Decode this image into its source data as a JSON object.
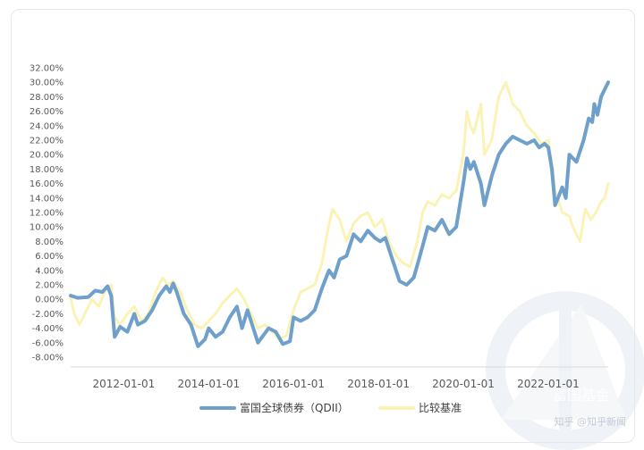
{
  "chart_data": {
    "type": "line",
    "yticks": [
      "32.00%",
      "30.00%",
      "28.00%",
      "26.00%",
      "24.00%",
      "22.00%",
      "20.00%",
      "18.00%",
      "16.00%",
      "14.00%",
      "12.00%",
      "10.00%",
      "8.00%",
      "6.00%",
      "4.00%",
      "2.00%",
      "0.00%",
      "-2.00%",
      "-4.00%",
      "-6.00%",
      "-8.00%"
    ],
    "ylim": [
      -8,
      32
    ],
    "xticks": [
      "2012-01-01",
      "2014-01-01",
      "2016-01-01",
      "2018-01-01",
      "2020-01-01",
      "2022-01-01"
    ],
    "xlim": [
      "2010-10-01",
      "2023-06-01"
    ],
    "grid": false,
    "legend_position": "bottom",
    "series": [
      {
        "name": "富国全球债券（QDII）",
        "color": "#6fa0cc",
        "points": [
          [
            "2010-10-01",
            0.5
          ],
          [
            "2010-12-01",
            0.2
          ],
          [
            "2011-03-01",
            0.3
          ],
          [
            "2011-05-01",
            1.2
          ],
          [
            "2011-07-01",
            1.0
          ],
          [
            "2011-08-15",
            1.8
          ],
          [
            "2011-09-15",
            0.5
          ],
          [
            "2011-10-15",
            -5.2
          ],
          [
            "2011-12-01",
            -3.8
          ],
          [
            "2012-02-01",
            -4.5
          ],
          [
            "2012-04-01",
            -2.0
          ],
          [
            "2012-05-01",
            -3.5
          ],
          [
            "2012-07-01",
            -3.0
          ],
          [
            "2012-09-01",
            -1.5
          ],
          [
            "2012-11-01",
            0.5
          ],
          [
            "2013-01-01",
            1.8
          ],
          [
            "2013-02-01",
            1.0
          ],
          [
            "2013-03-01",
            2.2
          ],
          [
            "2013-04-01",
            1.0
          ],
          [
            "2013-06-01",
            -2.0
          ],
          [
            "2013-08-01",
            -3.5
          ],
          [
            "2013-10-01",
            -6.5
          ],
          [
            "2013-12-01",
            -5.5
          ],
          [
            "2014-01-01",
            -4.0
          ],
          [
            "2014-03-01",
            -5.2
          ],
          [
            "2014-05-01",
            -4.5
          ],
          [
            "2014-07-01",
            -2.5
          ],
          [
            "2014-09-01",
            -1.0
          ],
          [
            "2014-10-15",
            -4.0
          ],
          [
            "2014-12-01",
            -1.5
          ],
          [
            "2015-03-01",
            -6.0
          ],
          [
            "2015-06-01",
            -4.0
          ],
          [
            "2015-08-01",
            -4.5
          ],
          [
            "2015-10-01",
            -6.2
          ],
          [
            "2015-12-01",
            -5.8
          ],
          [
            "2016-01-01",
            -2.5
          ],
          [
            "2016-03-01",
            -3.0
          ],
          [
            "2016-05-01",
            -2.5
          ],
          [
            "2016-07-01",
            -1.5
          ],
          [
            "2016-09-01",
            1.5
          ],
          [
            "2016-11-01",
            4.0
          ],
          [
            "2016-12-15",
            3.0
          ],
          [
            "2017-02-01",
            5.5
          ],
          [
            "2017-04-01",
            6.0
          ],
          [
            "2017-06-01",
            9.0
          ],
          [
            "2017-08-01",
            8.0
          ],
          [
            "2017-10-01",
            9.5
          ],
          [
            "2017-12-01",
            8.5
          ],
          [
            "2018-01-15",
            8.0
          ],
          [
            "2018-03-01",
            8.5
          ],
          [
            "2018-05-01",
            5.5
          ],
          [
            "2018-07-01",
            2.5
          ],
          [
            "2018-09-01",
            2.0
          ],
          [
            "2018-11-01",
            3.0
          ],
          [
            "2019-01-01",
            6.5
          ],
          [
            "2019-03-01",
            10.0
          ],
          [
            "2019-05-01",
            9.5
          ],
          [
            "2019-07-01",
            11.0
          ],
          [
            "2019-09-01",
            9.0
          ],
          [
            "2019-11-01",
            10.0
          ],
          [
            "2020-01-01",
            16.0
          ],
          [
            "2020-02-01",
            19.5
          ],
          [
            "2020-03-01",
            18.0
          ],
          [
            "2020-04-01",
            19.0
          ],
          [
            "2020-06-01",
            16.0
          ],
          [
            "2020-07-01",
            13.0
          ],
          [
            "2020-09-01",
            17.0
          ],
          [
            "2020-11-01",
            20.0
          ],
          [
            "2021-01-01",
            21.5
          ],
          [
            "2021-03-01",
            22.5
          ],
          [
            "2021-05-01",
            22.0
          ],
          [
            "2021-07-01",
            21.5
          ],
          [
            "2021-09-01",
            22.0
          ],
          [
            "2021-10-15",
            21.0
          ],
          [
            "2021-12-01",
            21.5
          ],
          [
            "2022-01-01",
            21.0
          ],
          [
            "2022-02-01",
            18.0
          ],
          [
            "2022-03-01",
            13.0
          ],
          [
            "2022-05-01",
            15.5
          ],
          [
            "2022-06-01",
            14.0
          ],
          [
            "2022-07-01",
            20.0
          ],
          [
            "2022-09-01",
            19.0
          ],
          [
            "2022-11-01",
            22.0
          ],
          [
            "2022-12-15",
            25.0
          ],
          [
            "2023-01-15",
            24.5
          ],
          [
            "2023-02-01",
            27.0
          ],
          [
            "2023-03-01",
            25.5
          ],
          [
            "2023-04-01",
            28.0
          ],
          [
            "2023-05-01",
            29.0
          ],
          [
            "2023-06-01",
            30.0
          ]
        ]
      },
      {
        "name": "比较基准",
        "color": "#fbf3b6",
        "points": [
          [
            "2010-10-01",
            0.2
          ],
          [
            "2010-11-01",
            -2.0
          ],
          [
            "2010-12-15",
            -3.5
          ],
          [
            "2011-02-01",
            -2.0
          ],
          [
            "2011-04-01",
            0.0
          ],
          [
            "2011-06-01",
            -1.0
          ],
          [
            "2011-08-01",
            1.5
          ],
          [
            "2011-09-15",
            2.0
          ],
          [
            "2011-10-15",
            -2.5
          ],
          [
            "2011-12-01",
            -3.5
          ],
          [
            "2012-02-01",
            -2.0
          ],
          [
            "2012-04-01",
            -1.0
          ],
          [
            "2012-06-01",
            -3.0
          ],
          [
            "2012-08-01",
            -2.0
          ],
          [
            "2012-10-01",
            1.0
          ],
          [
            "2012-12-01",
            3.0
          ],
          [
            "2013-01-15",
            2.0
          ],
          [
            "2013-03-01",
            2.5
          ],
          [
            "2013-05-01",
            1.0
          ],
          [
            "2013-07-01",
            -1.5
          ],
          [
            "2013-09-01",
            -3.5
          ],
          [
            "2013-11-01",
            -4.0
          ],
          [
            "2014-01-01",
            -3.0
          ],
          [
            "2014-03-01",
            -2.0
          ],
          [
            "2014-05-01",
            -0.5
          ],
          [
            "2014-07-01",
            0.5
          ],
          [
            "2014-09-01",
            1.5
          ],
          [
            "2014-11-01",
            0.0
          ],
          [
            "2015-01-01",
            -2.0
          ],
          [
            "2015-03-01",
            -4.0
          ],
          [
            "2015-05-01",
            -3.5
          ],
          [
            "2015-07-01",
            -4.5
          ],
          [
            "2015-09-01",
            -5.5
          ],
          [
            "2015-11-01",
            -5.0
          ],
          [
            "2016-01-01",
            -1.5
          ],
          [
            "2016-03-01",
            1.0
          ],
          [
            "2016-05-01",
            1.5
          ],
          [
            "2016-07-01",
            2.0
          ],
          [
            "2016-09-01",
            5.0
          ],
          [
            "2016-10-15",
            9.0
          ],
          [
            "2016-12-01",
            12.5
          ],
          [
            "2017-02-01",
            11.0
          ],
          [
            "2017-04-01",
            8.0
          ],
          [
            "2017-06-01",
            10.5
          ],
          [
            "2017-08-01",
            11.5
          ],
          [
            "2017-10-01",
            12.0
          ],
          [
            "2017-12-01",
            10.0
          ],
          [
            "2018-02-01",
            11.0
          ],
          [
            "2018-04-01",
            8.0
          ],
          [
            "2018-06-01",
            6.0
          ],
          [
            "2018-08-01",
            5.0
          ],
          [
            "2018-10-01",
            4.5
          ],
          [
            "2018-12-01",
            8.0
          ],
          [
            "2019-01-15",
            12.0
          ],
          [
            "2019-03-01",
            13.5
          ],
          [
            "2019-05-01",
            13.0
          ],
          [
            "2019-07-01",
            14.5
          ],
          [
            "2019-09-01",
            14.0
          ],
          [
            "2019-11-01",
            15.0
          ],
          [
            "2020-01-01",
            20.0
          ],
          [
            "2020-02-01",
            26.0
          ],
          [
            "2020-03-01",
            24.0
          ],
          [
            "2020-04-01",
            23.0
          ],
          [
            "2020-06-01",
            27.0
          ],
          [
            "2020-07-01",
            20.0
          ],
          [
            "2020-09-01",
            22.0
          ],
          [
            "2020-11-01",
            28.0
          ],
          [
            "2021-01-01",
            30.0
          ],
          [
            "2021-03-01",
            27.0
          ],
          [
            "2021-05-01",
            26.0
          ],
          [
            "2021-07-01",
            24.0
          ],
          [
            "2021-09-01",
            23.0
          ],
          [
            "2021-11-01",
            21.5
          ],
          [
            "2022-01-01",
            22.0
          ],
          [
            "2022-02-01",
            19.0
          ],
          [
            "2022-03-01",
            15.0
          ],
          [
            "2022-05-01",
            12.0
          ],
          [
            "2022-07-01",
            11.5
          ],
          [
            "2022-08-01",
            10.0
          ],
          [
            "2022-10-01",
            8.0
          ],
          [
            "2022-11-15",
            12.5
          ],
          [
            "2023-01-01",
            11.0
          ],
          [
            "2023-02-15",
            12.0
          ],
          [
            "2023-04-01",
            13.5
          ],
          [
            "2023-05-01",
            14.0
          ],
          [
            "2023-06-01",
            16.0
          ]
        ]
      }
    ]
  },
  "watermarks": {
    "brand": "富国基金",
    "source": "知乎 @知乎新闻"
  }
}
